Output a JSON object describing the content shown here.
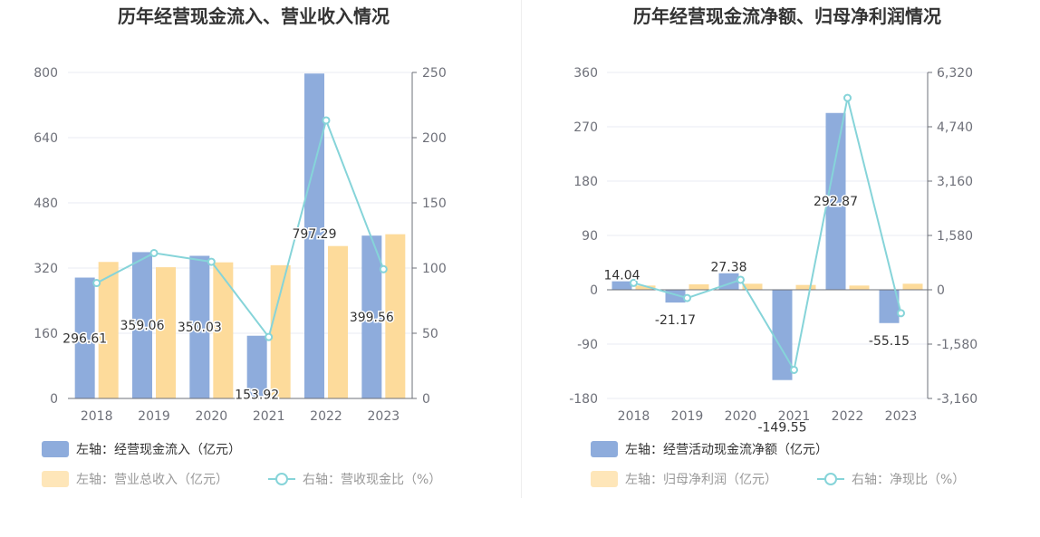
{
  "colors": {
    "bar_primary": "#8eacdc",
    "bar_secondary": "#fddb9b",
    "line": "#86d4d9",
    "legend_text_active": "#333333",
    "legend_text_muted": "#999999",
    "grid": "#e8ebf3",
    "axis": "#6e7079"
  },
  "chart_data": [
    {
      "type": "bar",
      "title": "历年经营现金流入、营业收入情况",
      "categories": [
        "2018",
        "2019",
        "2020",
        "2021",
        "2022",
        "2023"
      ],
      "left_axis": {
        "range": [
          0,
          800
        ],
        "ticks": [
          "0",
          "160",
          "320",
          "480",
          "640",
          "800"
        ]
      },
      "right_axis": {
        "range": [
          0,
          250
        ],
        "ticks": [
          "0",
          "50",
          "100",
          "150",
          "200",
          "250"
        ]
      },
      "series": [
        {
          "name": "左轴：经营现金流入（亿元）",
          "kind": "bar",
          "axis": "left",
          "values": [
            296.61,
            359.06,
            350.03,
            153.92,
            797.29,
            399.56
          ],
          "labels": [
            "296.61",
            "359.06",
            "350.03",
            "153.92",
            "797.29",
            "399.56"
          ]
        },
        {
          "name": "左轴：营业总收入（亿元）",
          "kind": "bar",
          "axis": "left",
          "values": [
            335,
            322,
            334,
            327,
            374,
            403
          ]
        },
        {
          "name": "右轴：营收现金比（%）",
          "kind": "line",
          "axis": "right",
          "values": [
            88.5,
            111.5,
            104.8,
            47.1,
            213.2,
            99.1
          ]
        }
      ]
    },
    {
      "type": "bar",
      "title": "历年经营现金流净额、归母净利润情况",
      "categories": [
        "2018",
        "2019",
        "2020",
        "2021",
        "2022",
        "2023"
      ],
      "left_axis": {
        "range": [
          -180,
          360
        ],
        "ticks": [
          "-180",
          "-90",
          "0",
          "90",
          "180",
          "270",
          "360"
        ]
      },
      "right_axis": {
        "range": [
          -3160,
          6320
        ],
        "ticks": [
          "-3,160",
          "-1,580",
          "0",
          "1,580",
          "3,160",
          "4,740",
          "6,320"
        ]
      },
      "series": [
        {
          "name": "左轴：经营活动现金流净额（亿元）",
          "kind": "bar",
          "axis": "left",
          "values": [
            14.04,
            -21.17,
            27.38,
            -149.55,
            292.87,
            -55.15
          ],
          "labels": [
            "14.04",
            "-21.17",
            "27.38",
            "-149.55",
            "292.87",
            "-55.15"
          ]
        },
        {
          "name": "左轴：归母净利润（亿元）",
          "kind": "bar",
          "axis": "left",
          "values": [
            7,
            9,
            10,
            8,
            7,
            10
          ]
        },
        {
          "name": "右轴：净现比（%）",
          "kind": "line",
          "axis": "right",
          "values": [
            200,
            -240,
            290,
            -2330,
            5580,
            -680
          ]
        }
      ]
    }
  ]
}
